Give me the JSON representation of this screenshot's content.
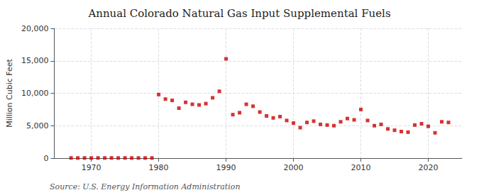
{
  "chart_data": {
    "type": "scatter",
    "title": "Annual Colorado Natural Gas Input Supplemental Fuels",
    "ylabel": "Million Cubic Feet",
    "annotations": [
      "Source: U.S. Energy Information Administration"
    ],
    "x": [
      1967,
      1968,
      1969,
      1970,
      1971,
      1972,
      1973,
      1974,
      1975,
      1976,
      1977,
      1978,
      1979,
      1980,
      1981,
      1982,
      1983,
      1984,
      1985,
      1986,
      1987,
      1988,
      1989,
      1990,
      1991,
      1992,
      1993,
      1994,
      1995,
      1996,
      1997,
      1998,
      1999,
      2000,
      2001,
      2002,
      2003,
      2004,
      2005,
      2006,
      2007,
      2008,
      2009,
      2010,
      2011,
      2012,
      2013,
      2014,
      2015,
      2016,
      2017,
      2018,
      2019,
      2020,
      2021,
      2022,
      2023
    ],
    "values": [
      30,
      20,
      25,
      20,
      30,
      25,
      30,
      20,
      30,
      20,
      20,
      20,
      20,
      9800,
      9100,
      8900,
      7700,
      8600,
      8300,
      8200,
      8400,
      9300,
      10300,
      15300,
      6700,
      7000,
      8300,
      8000,
      7100,
      6500,
      6200,
      6400,
      5800,
      5400,
      4700,
      5500,
      5700,
      5200,
      5100,
      5000,
      5600,
      6100,
      5900,
      7500,
      5800,
      5000,
      5200,
      4500,
      4300,
      4100,
      4000,
      5100,
      5300,
      4900,
      3900,
      5600,
      5500
    ],
    "color": "#cc0000",
    "marker": "square",
    "xlim": [
      1964.5,
      2025
    ],
    "xticks": [
      1970,
      1980,
      1990,
      2000,
      2010,
      2020
    ],
    "ylim": [
      0,
      20000
    ],
    "yticks": [
      0,
      {
        "value": 5000,
        "label": "5,000"
      },
      {
        "value": 10000,
        "label": "10,000"
      },
      {
        "value": 15000,
        "label": "15,000"
      },
      {
        "value": 20000,
        "label": "20,000"
      }
    ],
    "grid": true
  }
}
